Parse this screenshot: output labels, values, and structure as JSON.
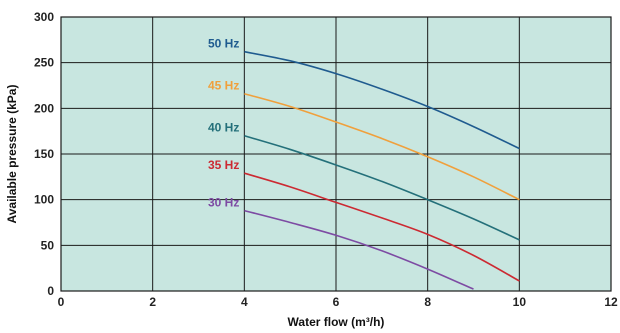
{
  "chart_data": {
    "type": "line",
    "title": "",
    "xlabel": "Water flow  (m³/h)",
    "ylabel": "Available pressure  (kPa)",
    "xlim": [
      0,
      12
    ],
    "ylim": [
      0,
      300
    ],
    "x_ticks": [
      0,
      2,
      4,
      6,
      8,
      10,
      12
    ],
    "y_ticks": [
      0,
      50,
      100,
      150,
      200,
      250,
      300
    ],
    "grid": true,
    "plot_background": "#c8e6e0",
    "gridline_color": "#1a1a1a",
    "series": [
      {
        "name": "50 Hz",
        "color": "#1f5b8f",
        "x": [
          4,
          5,
          6,
          7,
          8,
          9,
          10
        ],
        "y": [
          262,
          252,
          238,
          221,
          202,
          180,
          156
        ]
      },
      {
        "name": "45 Hz",
        "color": "#f0a03c",
        "x": [
          4,
          5,
          6,
          7,
          8,
          9,
          10
        ],
        "y": [
          216,
          202,
          185,
          167,
          147,
          125,
          100
        ]
      },
      {
        "name": "40 Hz",
        "color": "#24707a",
        "x": [
          4,
          5,
          6,
          7,
          8,
          9,
          10
        ],
        "y": [
          170,
          155,
          138,
          120,
          100,
          79,
          56
        ]
      },
      {
        "name": "35 Hz",
        "color": "#cc2a32",
        "x": [
          4,
          5,
          6,
          7,
          8,
          9,
          10
        ],
        "y": [
          129,
          114,
          97,
          80,
          62,
          39,
          11
        ]
      },
      {
        "name": "30 Hz",
        "color": "#7d4ba3",
        "x": [
          4,
          5,
          6,
          7,
          8,
          9
        ],
        "y": [
          88,
          75,
          61,
          44,
          24,
          2
        ]
      }
    ]
  }
}
